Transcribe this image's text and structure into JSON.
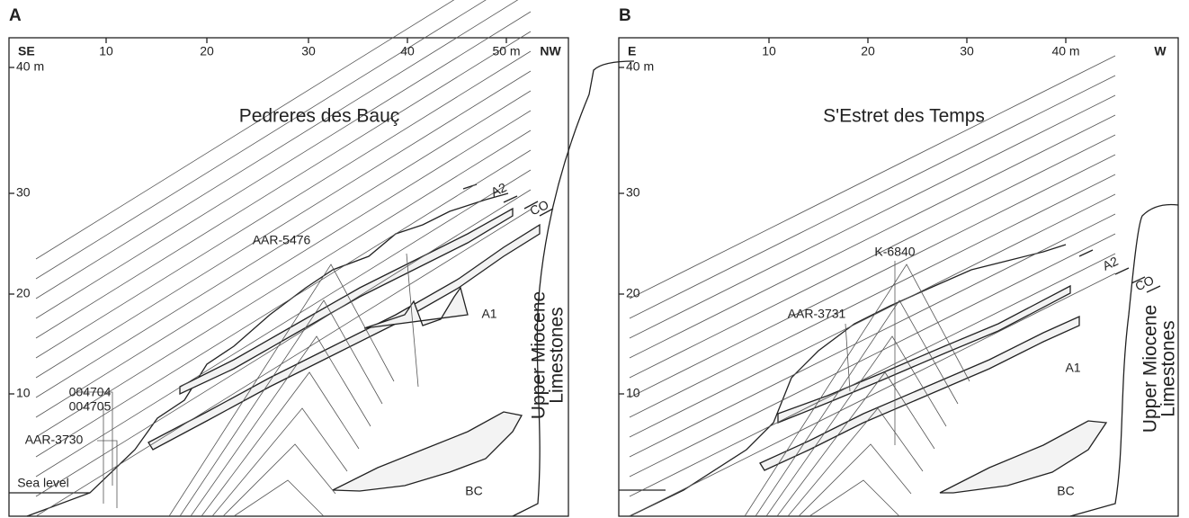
{
  "panels": [
    {
      "letter": "A",
      "left": "SE",
      "right": "NW",
      "top_ticks": [
        "10",
        "20",
        "30",
        "40",
        "50 m"
      ],
      "left_ticks": [
        "40 m",
        "30",
        "20",
        "10"
      ],
      "title": "Pedreres des Bauç",
      "labels": [
        "A2",
        "CO",
        "AAR-5476",
        "A1",
        "004704",
        "004705",
        "AAR-3730",
        "Sea level",
        "BC"
      ],
      "cliff": [
        "Upper Miocene",
        "Limestones"
      ]
    },
    {
      "letter": "B",
      "left": "E",
      "right": "W",
      "top_ticks": [
        "10",
        "20",
        "30",
        "40 m"
      ],
      "left_ticks": [
        "40 m",
        "30",
        "20",
        "10"
      ],
      "title": "S'Estret des Temps",
      "labels": [
        "A2",
        "CO",
        "K-6840",
        "AAR-3731",
        "A1",
        "BC"
      ],
      "cliff": [
        "Upper Miocene",
        "Limestones"
      ]
    }
  ]
}
